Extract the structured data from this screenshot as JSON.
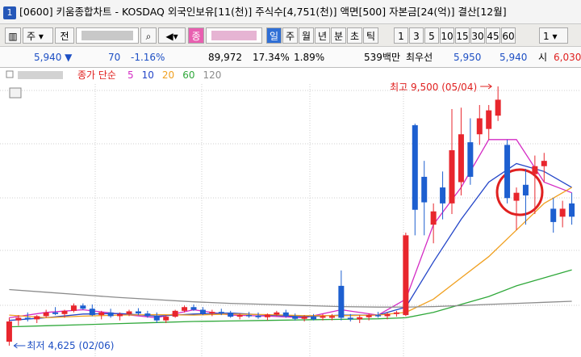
{
  "title_bar": {
    "badge": "1",
    "text": "[0600] 키움종합차트 - KOSDAQ 외국인보유[11(천)] 주식수[4,751(천)] 액면[500] 자본금[24(억)] 결산[12월]"
  },
  "toolbar": {
    "market": "주",
    "scope": "전",
    "code_tag": "종",
    "periods": [
      "일",
      "주",
      "월",
      "년",
      "분",
      "초",
      "틱"
    ],
    "intervals": [
      "1",
      "3",
      "5",
      "10",
      "15",
      "30",
      "45",
      "60"
    ],
    "count": "1"
  },
  "info_row": {
    "price": "5,940 ▼",
    "change": "70",
    "change_pct": "-1.16%",
    "volume": "89,972",
    "turnover_pct": "17.34%",
    "ratio_pct": "1.89%",
    "amount": "539백만",
    "best_label": "최우선",
    "ask": "5,950",
    "bid": "5,940",
    "open_label": "시",
    "open": "6,030"
  },
  "chart_data": {
    "type": "candlestick",
    "legend_title": "종가 단순",
    "up_color": "#e8262d",
    "down_color": "#1d5fd0",
    "ylim": [
      4412,
      9849
    ],
    "xlim": [
      -1,
      62
    ],
    "open": [
      4700,
      5100,
      5150,
      5120,
      5180,
      5250,
      5220,
      5280,
      5380,
      5320,
      5200,
      5250,
      5180,
      5220,
      5270,
      5230,
      5180,
      5100,
      5170,
      5280,
      5350,
      5300,
      5230,
      5260,
      5240,
      5170,
      5200,
      5190,
      5160,
      5210,
      5250,
      5180,
      5130,
      5170,
      5150,
      5150,
      5750,
      5150,
      5120,
      5160,
      5200,
      5180,
      5220,
      5200,
      8770,
      7800,
      6900,
      7600,
      7300,
      7700,
      8450,
      8600,
      8700,
      8950,
      8400,
      7350,
      7650,
      7850,
      8000,
      7200,
      7050,
      7300
    ],
    "high": [
      5150,
      5200,
      5250,
      5200,
      5300,
      5350,
      5300,
      5420,
      5420,
      5400,
      5280,
      5320,
      5250,
      5300,
      5330,
      5280,
      5250,
      5200,
      5300,
      5380,
      5400,
      5350,
      5300,
      5320,
      5280,
      5230,
      5260,
      5250,
      5230,
      5280,
      5300,
      5230,
      5200,
      5220,
      5220,
      5220,
      6040,
      5220,
      5200,
      5230,
      5260,
      5250,
      5280,
      6750,
      8800,
      8100,
      7300,
      7900,
      9075,
      9100,
      8900,
      9150,
      9150,
      9500,
      8500,
      7600,
      7950,
      8200,
      8250,
      7400,
      7350,
      7500
    ],
    "low": [
      4625,
      5000,
      5080,
      5050,
      5150,
      5200,
      5150,
      5250,
      5300,
      5180,
      5120,
      5150,
      5100,
      5180,
      5200,
      5150,
      5050,
      5050,
      5150,
      5250,
      5280,
      5200,
      5180,
      5200,
      5150,
      5120,
      5150,
      5130,
      5100,
      5180,
      5150,
      5100,
      5080,
      5100,
      5100,
      5100,
      5100,
      5080,
      5050,
      5100,
      5150,
      5120,
      5170,
      5180,
      6700,
      6700,
      6550,
      7000,
      7100,
      7450,
      7650,
      8400,
      8500,
      8850,
      7300,
      6800,
      6900,
      7100,
      7700,
      6750,
      6850,
      6900
    ],
    "close": [
      5080,
      5150,
      5120,
      5180,
      5250,
      5220,
      5280,
      5380,
      5320,
      5200,
      5250,
      5180,
      5220,
      5270,
      5230,
      5180,
      5100,
      5170,
      5280,
      5350,
      5300,
      5230,
      5260,
      5240,
      5170,
      5200,
      5190,
      5160,
      5210,
      5250,
      5180,
      5130,
      5170,
      5120,
      5180,
      5180,
      5150,
      5120,
      5160,
      5200,
      5180,
      5220,
      5250,
      6700,
      7180,
      7320,
      7150,
      7300,
      8300,
      8600,
      7800,
      8900,
      9050,
      9250,
      7400,
      7500,
      7450,
      8000,
      8100,
      6950,
      7200,
      7050
    ],
    "series": [
      {
        "name": "5",
        "color": "#d42bc4",
        "x": [
          0,
          4,
          8,
          12,
          16,
          20,
          24,
          28,
          32,
          36,
          40,
          43,
          46,
          49,
          52,
          55,
          58,
          61
        ],
        "values": [
          5150,
          5250,
          5300,
          5220,
          5150,
          5300,
          5200,
          5180,
          5150,
          5300,
          5200,
          5500,
          6900,
          7600,
          8500,
          8500,
          7700,
          7500
        ]
      },
      {
        "name": "10",
        "color": "#2446c8",
        "x": [
          0,
          4,
          8,
          12,
          16,
          20,
          24,
          28,
          32,
          36,
          40,
          43,
          46,
          49,
          52,
          55,
          58,
          61
        ],
        "values": [
          5100,
          5150,
          5220,
          5230,
          5180,
          5220,
          5240,
          5200,
          5170,
          5200,
          5200,
          5350,
          6200,
          7000,
          7700,
          8050,
          7900,
          7600
        ]
      },
      {
        "name": "20",
        "color": "#f0a020",
        "x": [
          0,
          4,
          8,
          12,
          16,
          20,
          24,
          28,
          32,
          36,
          40,
          43,
          46,
          49,
          52,
          55,
          58,
          61
        ],
        "values": [
          5200,
          5150,
          5180,
          5200,
          5210,
          5200,
          5220,
          5210,
          5190,
          5190,
          5200,
          5250,
          5500,
          5900,
          6300,
          6800,
          7300,
          7600
        ]
      },
      {
        "name": "60",
        "color": "#2fa83a",
        "x": [
          0,
          4,
          8,
          12,
          16,
          20,
          24,
          28,
          32,
          36,
          40,
          43,
          46,
          49,
          52,
          55,
          58,
          61
        ],
        "values": [
          4980,
          5000,
          5020,
          5040,
          5060,
          5080,
          5090,
          5100,
          5110,
          5120,
          5130,
          5150,
          5250,
          5400,
          5550,
          5750,
          5900,
          6050
        ]
      },
      {
        "name": "120",
        "color": "#8c8c8c",
        "x": [
          0,
          4,
          8,
          12,
          16,
          20,
          24,
          28,
          32,
          36,
          40,
          43,
          46,
          49,
          52,
          55,
          58,
          61
        ],
        "values": [
          5680,
          5630,
          5580,
          5530,
          5490,
          5450,
          5420,
          5400,
          5380,
          5360,
          5350,
          5350,
          5360,
          5380,
          5400,
          5420,
          5440,
          5460
        ]
      }
    ],
    "annotations": {
      "high": "최고 9,500 (05/04)",
      "low": "최저 4,625 (02/06)"
    }
  }
}
